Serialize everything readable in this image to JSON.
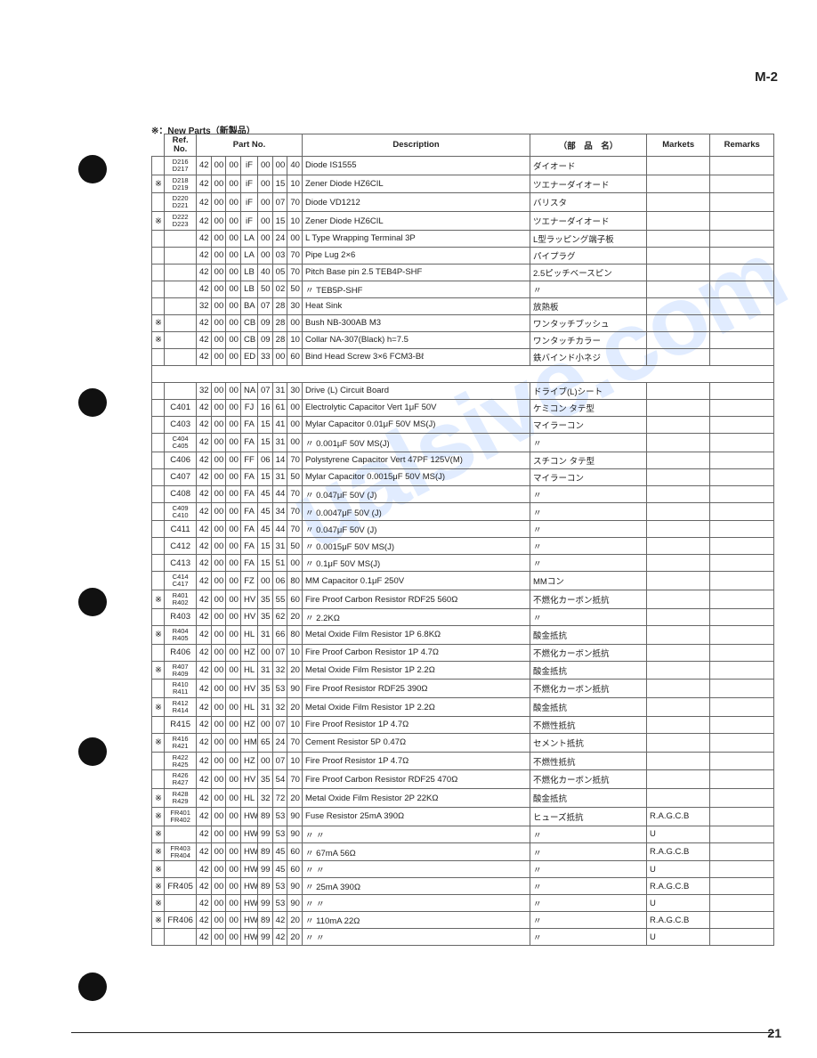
{
  "page_corner": "M-2",
  "new_parts_note": "※：New Parts（新製品）",
  "page_number": "21",
  "watermark": "ualsive.com",
  "headers": {
    "ref": "Ref.\nNo.",
    "partno": "Part No.",
    "desc": "Description",
    "jp": "（部　品　名）",
    "mkt": "Markets",
    "rem": "Remarks"
  },
  "rows": [
    {
      "star": "",
      "ref": "D216\nD217",
      "pn": [
        "42",
        "00",
        "00",
        "iF",
        "00",
        "00",
        "40"
      ],
      "desc": "Diode               IS1555",
      "jp": "ダイオード",
      "mkt": "",
      "rem": ""
    },
    {
      "star": "※",
      "ref": "D218\nD219",
      "pn": [
        "42",
        "00",
        "00",
        "iF",
        "00",
        "15",
        "10"
      ],
      "desc": "Zener Diode        HZ6CIL",
      "jp": "ツエナーダイオード",
      "mkt": "",
      "rem": ""
    },
    {
      "star": "",
      "ref": "D220\nD221",
      "pn": [
        "42",
        "00",
        "00",
        "iF",
        "00",
        "07",
        "70"
      ],
      "desc": "Diode              VD1212",
      "jp": "バリスタ",
      "mkt": "",
      "rem": ""
    },
    {
      "star": "※",
      "ref": "D222\nD223",
      "pn": [
        "42",
        "00",
        "00",
        "iF",
        "00",
        "15",
        "10"
      ],
      "desc": "Zener Diode        HZ6CIL",
      "jp": "ツエナーダイオード",
      "mkt": "",
      "rem": ""
    },
    {
      "star": "",
      "ref": "",
      "pn": [
        "42",
        "00",
        "00",
        "LA",
        "00",
        "24",
        "00"
      ],
      "desc": "L Type Wrapping Terminal 3P",
      "jp": "L型ラッピング端子板",
      "mkt": "",
      "rem": ""
    },
    {
      "star": "",
      "ref": "",
      "pn": [
        "42",
        "00",
        "00",
        "LA",
        "00",
        "03",
        "70"
      ],
      "desc": "Pipe Lug           2×6",
      "jp": "パイプラグ",
      "mkt": "",
      "rem": ""
    },
    {
      "star": "",
      "ref": "",
      "pn": [
        "42",
        "00",
        "00",
        "LB",
        "40",
        "05",
        "70"
      ],
      "desc": "Pitch Base pin 2.5 TEB4P-SHF",
      "jp": "2.5ピッチベースピン",
      "mkt": "",
      "rem": ""
    },
    {
      "star": "",
      "ref": "",
      "pn": [
        "42",
        "00",
        "00",
        "LB",
        "50",
        "02",
        "50"
      ],
      "desc": "        〃         TEB5P-SHF",
      "jp": "〃",
      "mkt": "",
      "rem": ""
    },
    {
      "star": "",
      "ref": "",
      "pn": [
        "32",
        "00",
        "00",
        "BA",
        "07",
        "28",
        "30"
      ],
      "desc": "Heat Sink",
      "jp": "放熱板",
      "mkt": "",
      "rem": ""
    },
    {
      "star": "※",
      "ref": "",
      "pn": [
        "42",
        "00",
        "00",
        "CB",
        "09",
        "28",
        "00"
      ],
      "desc": "Bush NB-300AB M3",
      "jp": "ワンタッチブッシュ",
      "mkt": "",
      "rem": ""
    },
    {
      "star": "※",
      "ref": "",
      "pn": [
        "42",
        "00",
        "00",
        "CB",
        "09",
        "28",
        "10"
      ],
      "desc": "Collar NA-307(Black) h=7.5",
      "jp": "ワンタッチカラー",
      "mkt": "",
      "rem": ""
    },
    {
      "star": "",
      "ref": "",
      "pn": [
        "42",
        "00",
        "00",
        "ED",
        "33",
        "00",
        "60"
      ],
      "desc": "Bind Head Screw 3×6 FCM3-Bℓ",
      "jp": "鉄バインド小ネジ",
      "mkt": "",
      "rem": ""
    },
    {
      "blank": true
    },
    {
      "star": "",
      "ref": "",
      "pn": [
        "32",
        "00",
        "00",
        "NA",
        "07",
        "31",
        "30"
      ],
      "desc": "Drive (L) Circuit Board",
      "jp": "ドライブ(L)シート",
      "mkt": "",
      "rem": ""
    },
    {
      "star": "",
      "ref": "C401",
      "pn": [
        "42",
        "00",
        "00",
        "FJ",
        "16",
        "61",
        "00"
      ],
      "desc": "Electrolytic Capacitor Vert 1μF 50V",
      "jp": "ケミコン タテ型",
      "mkt": "",
      "rem": ""
    },
    {
      "star": "",
      "ref": "C403",
      "pn": [
        "42",
        "00",
        "00",
        "FA",
        "15",
        "41",
        "00"
      ],
      "desc": "Mylar Capacitor 0.01μF 50V MS(J)",
      "jp": "マイラーコン",
      "mkt": "",
      "rem": ""
    },
    {
      "star": "",
      "ref": "C404\nC405",
      "pn": [
        "42",
        "00",
        "00",
        "FA",
        "15",
        "31",
        "00"
      ],
      "desc": "        〃        0.001μF 50V MS(J)",
      "jp": "〃",
      "mkt": "",
      "rem": ""
    },
    {
      "star": "",
      "ref": "C406",
      "pn": [
        "42",
        "00",
        "00",
        "FF",
        "06",
        "14",
        "70"
      ],
      "desc": "Polystyrene Capacitor Vert 47PF 125V(M)",
      "jp": "スチコン タテ型",
      "mkt": "",
      "rem": ""
    },
    {
      "star": "",
      "ref": "C407",
      "pn": [
        "42",
        "00",
        "00",
        "FA",
        "15",
        "31",
        "50"
      ],
      "desc": "Mylar Capacitor 0.0015μF 50V MS(J)",
      "jp": "マイラーコン",
      "mkt": "",
      "rem": ""
    },
    {
      "star": "",
      "ref": "C408",
      "pn": [
        "42",
        "00",
        "00",
        "FA",
        "45",
        "44",
        "70"
      ],
      "desc": "        〃        0.047μF 50V (J)",
      "jp": "〃",
      "mkt": "",
      "rem": ""
    },
    {
      "star": "",
      "ref": "C409\nC410",
      "pn": [
        "42",
        "00",
        "00",
        "FA",
        "45",
        "34",
        "70"
      ],
      "desc": "        〃        0.0047μF 50V (J)",
      "jp": "〃",
      "mkt": "",
      "rem": ""
    },
    {
      "star": "",
      "ref": "C411",
      "pn": [
        "42",
        "00",
        "00",
        "FA",
        "45",
        "44",
        "70"
      ],
      "desc": "        〃        0.047μF 50V (J)",
      "jp": "〃",
      "mkt": "",
      "rem": ""
    },
    {
      "star": "",
      "ref": "C412",
      "pn": [
        "42",
        "00",
        "00",
        "FA",
        "15",
        "31",
        "50"
      ],
      "desc": "        〃        0.0015μF 50V MS(J)",
      "jp": "〃",
      "mkt": "",
      "rem": ""
    },
    {
      "star": "",
      "ref": "C413",
      "pn": [
        "42",
        "00",
        "00",
        "FA",
        "15",
        "51",
        "00"
      ],
      "desc": "        〃        0.1μF 50V MS(J)",
      "jp": "〃",
      "mkt": "",
      "rem": ""
    },
    {
      "star": "",
      "ref": "C414\nC417",
      "pn": [
        "42",
        "00",
        "00",
        "FZ",
        "00",
        "06",
        "80"
      ],
      "desc": "MM Capacitor 0.1μF 250V",
      "jp": "MMコン",
      "mkt": "",
      "rem": ""
    },
    {
      "star": "※",
      "ref": "R401\nR402",
      "pn": [
        "42",
        "00",
        "00",
        "HV",
        "35",
        "55",
        "60"
      ],
      "desc": "Fire Proof Carbon Resistor RDF25 560Ω",
      "jp": "不燃化カーボン抵抗",
      "mkt": "",
      "rem": ""
    },
    {
      "star": "",
      "ref": "R403",
      "pn": [
        "42",
        "00",
        "00",
        "HV",
        "35",
        "62",
        "20"
      ],
      "desc": "        〃                    2.2KΩ",
      "jp": "〃",
      "mkt": "",
      "rem": ""
    },
    {
      "star": "※",
      "ref": "R404\nR405",
      "pn": [
        "42",
        "00",
        "00",
        "HL",
        "31",
        "66",
        "80"
      ],
      "desc": "Metal Oxide Film Resistor 1P 6.8KΩ",
      "jp": "酸金抵抗",
      "mkt": "",
      "rem": ""
    },
    {
      "star": "",
      "ref": "R406",
      "pn": [
        "42",
        "00",
        "00",
        "HZ",
        "00",
        "07",
        "10"
      ],
      "desc": "Fire Proof Carbon Resistor 1P 4.7Ω",
      "jp": "不燃化カーボン抵抗",
      "mkt": "",
      "rem": ""
    },
    {
      "star": "※",
      "ref": "R407\nR409",
      "pn": [
        "42",
        "00",
        "00",
        "HL",
        "31",
        "32",
        "20"
      ],
      "desc": "Metal Oxide Film Resistor 1P     2.2Ω",
      "jp": "酸金抵抗",
      "mkt": "",
      "rem": ""
    },
    {
      "star": "",
      "ref": "R410\nR411",
      "pn": [
        "42",
        "00",
        "00",
        "HV",
        "35",
        "53",
        "90"
      ],
      "desc": "Fire Proof Resistor RDF25       390Ω",
      "jp": "不燃化カーボン抵抗",
      "mkt": "",
      "rem": ""
    },
    {
      "star": "※",
      "ref": "R412\nR414",
      "pn": [
        "42",
        "00",
        "00",
        "HL",
        "31",
        "32",
        "20"
      ],
      "desc": "Metal Oxide Film Resistor 1P     2.2Ω",
      "jp": "酸金抵抗",
      "mkt": "",
      "rem": ""
    },
    {
      "star": "",
      "ref": "R415",
      "pn": [
        "42",
        "00",
        "00",
        "HZ",
        "00",
        "07",
        "10"
      ],
      "desc": "Fire Proof Resistor 1P          4.7Ω",
      "jp": "不燃性抵抗",
      "mkt": "",
      "rem": ""
    },
    {
      "star": "※",
      "ref": "R416\nR421",
      "pn": [
        "42",
        "00",
        "00",
        "HM",
        "65",
        "24",
        "70"
      ],
      "desc": "Cement Resistor 5P            0.47Ω",
      "jp": "セメント抵抗",
      "mkt": "",
      "rem": ""
    },
    {
      "star": "",
      "ref": "R422\nR425",
      "pn": [
        "42",
        "00",
        "00",
        "HZ",
        "00",
        "07",
        "10"
      ],
      "desc": "Fire Proof Resistor 1P          4.7Ω",
      "jp": "不燃性抵抗",
      "mkt": "",
      "rem": ""
    },
    {
      "star": "",
      "ref": "R426\nR427",
      "pn": [
        "42",
        "00",
        "00",
        "HV",
        "35",
        "54",
        "70"
      ],
      "desc": "Fire Proof Carbon Resistor RDF25 470Ω",
      "jp": "不燃化カーボン抵抗",
      "mkt": "",
      "rem": ""
    },
    {
      "star": "※",
      "ref": "R428\nR429",
      "pn": [
        "42",
        "00",
        "00",
        "HL",
        "32",
        "72",
        "20"
      ],
      "desc": "Metal Oxide Film Resistor 2P 22KΩ",
      "jp": "酸金抵抗",
      "mkt": "",
      "rem": ""
    },
    {
      "star": "※",
      "ref": "FR401\nFR402",
      "pn": [
        "42",
        "00",
        "00",
        "HW",
        "89",
        "53",
        "90"
      ],
      "desc": "Fuse Resistor         25mA 390Ω",
      "jp": "ヒューズ抵抗",
      "mkt": "R.A.G.C.B",
      "rem": ""
    },
    {
      "star": "※",
      "ref": "",
      "pn": [
        "42",
        "00",
        "00",
        "HW",
        "99",
        "53",
        "90"
      ],
      "desc": "        〃                〃",
      "jp": "〃",
      "mkt": "U",
      "rem": ""
    },
    {
      "star": "※",
      "ref": "FR403\nFR404",
      "pn": [
        "42",
        "00",
        "00",
        "HW",
        "89",
        "45",
        "60"
      ],
      "desc": "        〃           67mA 56Ω",
      "jp": "〃",
      "mkt": "R.A.G.C.B",
      "rem": ""
    },
    {
      "star": "※",
      "ref": "",
      "pn": [
        "42",
        "00",
        "00",
        "HW",
        "99",
        "45",
        "60"
      ],
      "desc": "        〃                〃",
      "jp": "〃",
      "mkt": "U",
      "rem": ""
    },
    {
      "star": "※",
      "ref": "FR405",
      "pn": [
        "42",
        "00",
        "00",
        "HW",
        "89",
        "53",
        "90"
      ],
      "desc": "        〃           25mA 390Ω",
      "jp": "〃",
      "mkt": "R.A.G.C.B",
      "rem": ""
    },
    {
      "star": "※",
      "ref": "",
      "pn": [
        "42",
        "00",
        "00",
        "HW",
        "99",
        "53",
        "90"
      ],
      "desc": "        〃                〃",
      "jp": "〃",
      "mkt": "U",
      "rem": ""
    },
    {
      "star": "※",
      "ref": "FR406",
      "pn": [
        "42",
        "00",
        "00",
        "HW",
        "89",
        "42",
        "20"
      ],
      "desc": "        〃          110mA 22Ω",
      "jp": "〃",
      "mkt": "R.A.G.C.B",
      "rem": ""
    },
    {
      "star": "",
      "ref": "",
      "pn": [
        "42",
        "00",
        "00",
        "HW",
        "99",
        "42",
        "20"
      ],
      "desc": "        〃                〃",
      "jp": "〃",
      "mkt": "U",
      "rem": ""
    }
  ]
}
